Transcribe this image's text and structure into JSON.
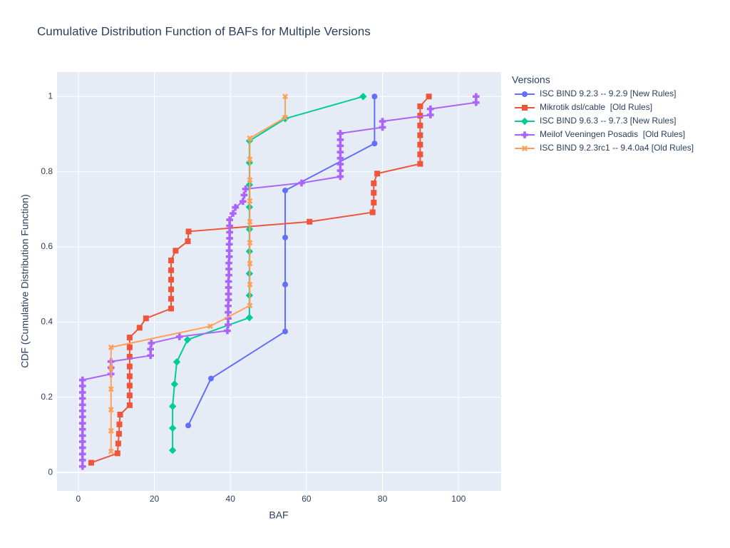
{
  "chart_data": {
    "type": "line",
    "title": "Cumulative Distribution Function of BAFs for Multiple Versions",
    "x_label": "BAF",
    "y_label": "CDF (Cumulative Distribution Function)",
    "legend_title": "Versions",
    "legend": "right",
    "grid": true,
    "xlim": [
      -5.6,
      111.2
    ],
    "ylim": [
      -0.049,
      1.065
    ],
    "xticks": [
      0,
      20,
      40,
      60,
      80,
      100
    ],
    "yticks": [
      0,
      0.2,
      0.4,
      0.6,
      0.8,
      1
    ],
    "series": [
      {
        "name": "ISC BIND 9.2.3 -- 9.2.9 [New Rules]",
        "color": "#636efa",
        "symbol": "circle",
        "x": [
          28.9,
          34.9,
          54.4,
          54.4,
          54.4,
          54.4,
          77.9,
          77.9
        ],
        "values": [
          0.125,
          0.25,
          0.375,
          0.5,
          0.625,
          0.75,
          0.875,
          1.0
        ]
      },
      {
        "name": "Mikrotik dsl/cable  [Old Rules]",
        "color": "#EF553B",
        "symbol": "square",
        "x": [
          3.4,
          10.3,
          10.5,
          10.7,
          10.8,
          11.0,
          13.5,
          13.5,
          13.5,
          13.5,
          13.5,
          13.5,
          13.5,
          13.5,
          16.1,
          17.8,
          24.4,
          24.4,
          24.4,
          24.4,
          24.4,
          24.4,
          25.6,
          28.8,
          29.0,
          60.8,
          77.4,
          77.7,
          77.7,
          77.7,
          78.6,
          89.9,
          89.9,
          89.9,
          89.9,
          89.9,
          89.9,
          89.9,
          92.2
        ],
        "values": [
          0.026,
          0.051,
          0.077,
          0.103,
          0.128,
          0.154,
          0.179,
          0.205,
          0.231,
          0.256,
          0.282,
          0.308,
          0.333,
          0.359,
          0.385,
          0.41,
          0.436,
          0.462,
          0.487,
          0.513,
          0.538,
          0.564,
          0.59,
          0.615,
          0.641,
          0.667,
          0.692,
          0.718,
          0.744,
          0.769,
          0.795,
          0.821,
          0.846,
          0.872,
          0.897,
          0.923,
          0.949,
          0.974,
          1.0
        ]
      },
      {
        "name": "ISC BIND 9.6.3 -- 9.7.3 [New Rules]",
        "color": "#00cc96",
        "symbol": "diamond",
        "x": [
          24.8,
          24.8,
          24.8,
          25.3,
          25.9,
          28.7,
          45.0,
          45.0,
          45.0,
          45.0,
          45.0,
          45.0,
          45.0,
          45.0,
          45.0,
          54.4,
          74.9
        ],
        "values": [
          0.059,
          0.118,
          0.176,
          0.235,
          0.294,
          0.353,
          0.412,
          0.471,
          0.529,
          0.588,
          0.647,
          0.706,
          0.765,
          0.824,
          0.882,
          0.941,
          1.0
        ]
      },
      {
        "name": "Meilof Veeningen Posadis  [Old Rules]",
        "color": "#ab63fa",
        "symbol": "cross",
        "x": [
          1.1,
          1.1,
          1.1,
          1.1,
          1.1,
          1.1,
          1.1,
          1.1,
          1.1,
          1.1,
          1.1,
          1.1,
          1.1,
          1.1,
          1.1,
          8.6,
          8.6,
          8.6,
          19.0,
          19.0,
          19.2,
          26.6,
          39.2,
          39.4,
          39.4,
          39.4,
          39.4,
          39.5,
          39.5,
          39.5,
          39.5,
          39.6,
          39.6,
          39.6,
          39.7,
          39.7,
          39.7,
          39.8,
          39.8,
          39.8,
          39.8,
          40.7,
          41.3,
          43.3,
          43.6,
          44.0,
          58.7,
          68.9,
          68.9,
          68.9,
          68.9,
          68.9,
          68.9,
          68.9,
          68.9,
          80.0,
          80.0,
          92.6,
          92.6,
          104.6,
          104.6
        ],
        "values": [
          0.016,
          0.033,
          0.049,
          0.066,
          0.082,
          0.098,
          0.115,
          0.131,
          0.148,
          0.164,
          0.18,
          0.197,
          0.213,
          0.23,
          0.246,
          0.262,
          0.279,
          0.295,
          0.311,
          0.328,
          0.344,
          0.361,
          0.377,
          0.393,
          0.41,
          0.426,
          0.443,
          0.459,
          0.475,
          0.492,
          0.508,
          0.525,
          0.541,
          0.557,
          0.574,
          0.59,
          0.607,
          0.623,
          0.639,
          0.656,
          0.672,
          0.689,
          0.705,
          0.721,
          0.738,
          0.754,
          0.77,
          0.787,
          0.803,
          0.82,
          0.836,
          0.852,
          0.869,
          0.885,
          0.902,
          0.918,
          0.934,
          0.951,
          0.967,
          0.984,
          1.0
        ]
      },
      {
        "name": "ISC BIND 9.2.3rc1 -- 9.4.0a4 [Old Rules]",
        "color": "#FFA15A",
        "symbol": "x",
        "x": [
          8.6,
          8.6,
          8.6,
          8.6,
          8.6,
          8.6,
          34.7,
          45.1,
          45.1,
          45.1,
          45.1,
          45.1,
          45.1,
          45.1,
          45.1,
          45.1,
          54.4,
          54.4
        ],
        "values": [
          0.056,
          0.111,
          0.167,
          0.222,
          0.278,
          0.333,
          0.389,
          0.444,
          0.5,
          0.556,
          0.611,
          0.667,
          0.722,
          0.778,
          0.833,
          0.889,
          0.944,
          1.0
        ]
      }
    ]
  }
}
